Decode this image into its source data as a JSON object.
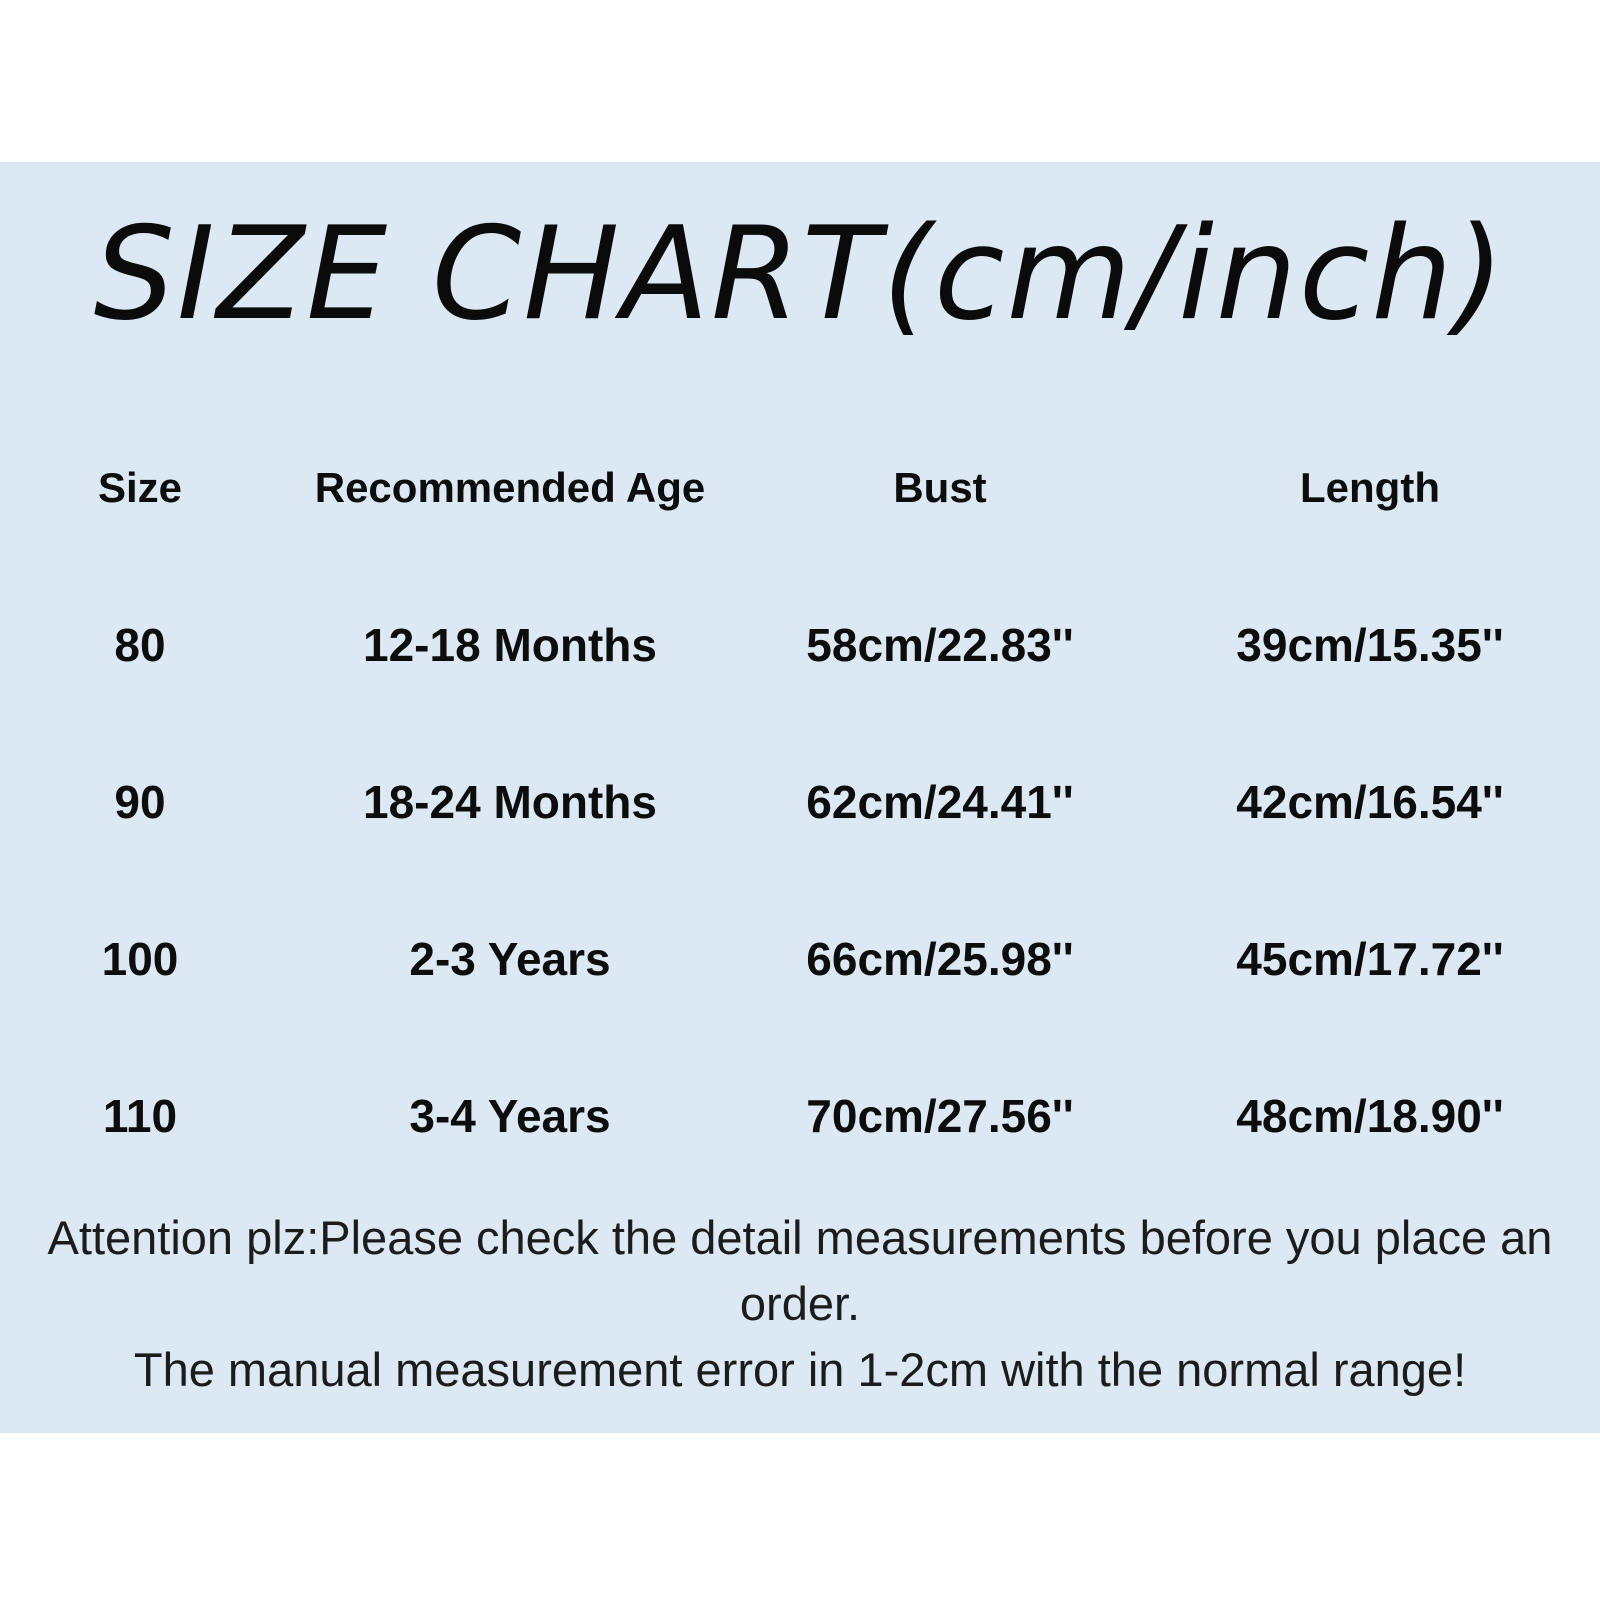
{
  "title": "SIZE CHART(cm/inch)",
  "panel_background": "#dce8f3",
  "text_color": "#0d0d0d",
  "chart_data": {
    "type": "table",
    "title": "SIZE CHART(cm/inch)",
    "columns": [
      "Size",
      "Recommended Age",
      "Bust",
      "Length"
    ],
    "rows": [
      [
        "80",
        "12-18 Months",
        "58cm/22.83''",
        "39cm/15.35''"
      ],
      [
        "90",
        "18-24 Months",
        "62cm/24.41''",
        "42cm/16.54''"
      ],
      [
        "100",
        "2-3 Years",
        "66cm/25.98''",
        "45cm/17.72''"
      ],
      [
        "110",
        "3-4 Years",
        "70cm/27.56''",
        "48cm/18.90''"
      ]
    ]
  },
  "table": {
    "columns": [
      "Size",
      "Recommended Age",
      "Bust",
      "Length"
    ],
    "rows": [
      [
        "80",
        "12-18 Months",
        "58cm/22.83''",
        "39cm/15.35''"
      ],
      [
        "90",
        "18-24 Months",
        "62cm/24.41''",
        "42cm/16.54''"
      ],
      [
        "100",
        "2-3 Years",
        "66cm/25.98''",
        "45cm/17.72''"
      ],
      [
        "110",
        "3-4 Years",
        "70cm/27.56''",
        "48cm/18.90''"
      ]
    ]
  },
  "notes": [
    "Attention plz:Please check the detail measurements before you place an order.",
    "The manual measurement error in 1-2cm with the normal range!"
  ]
}
